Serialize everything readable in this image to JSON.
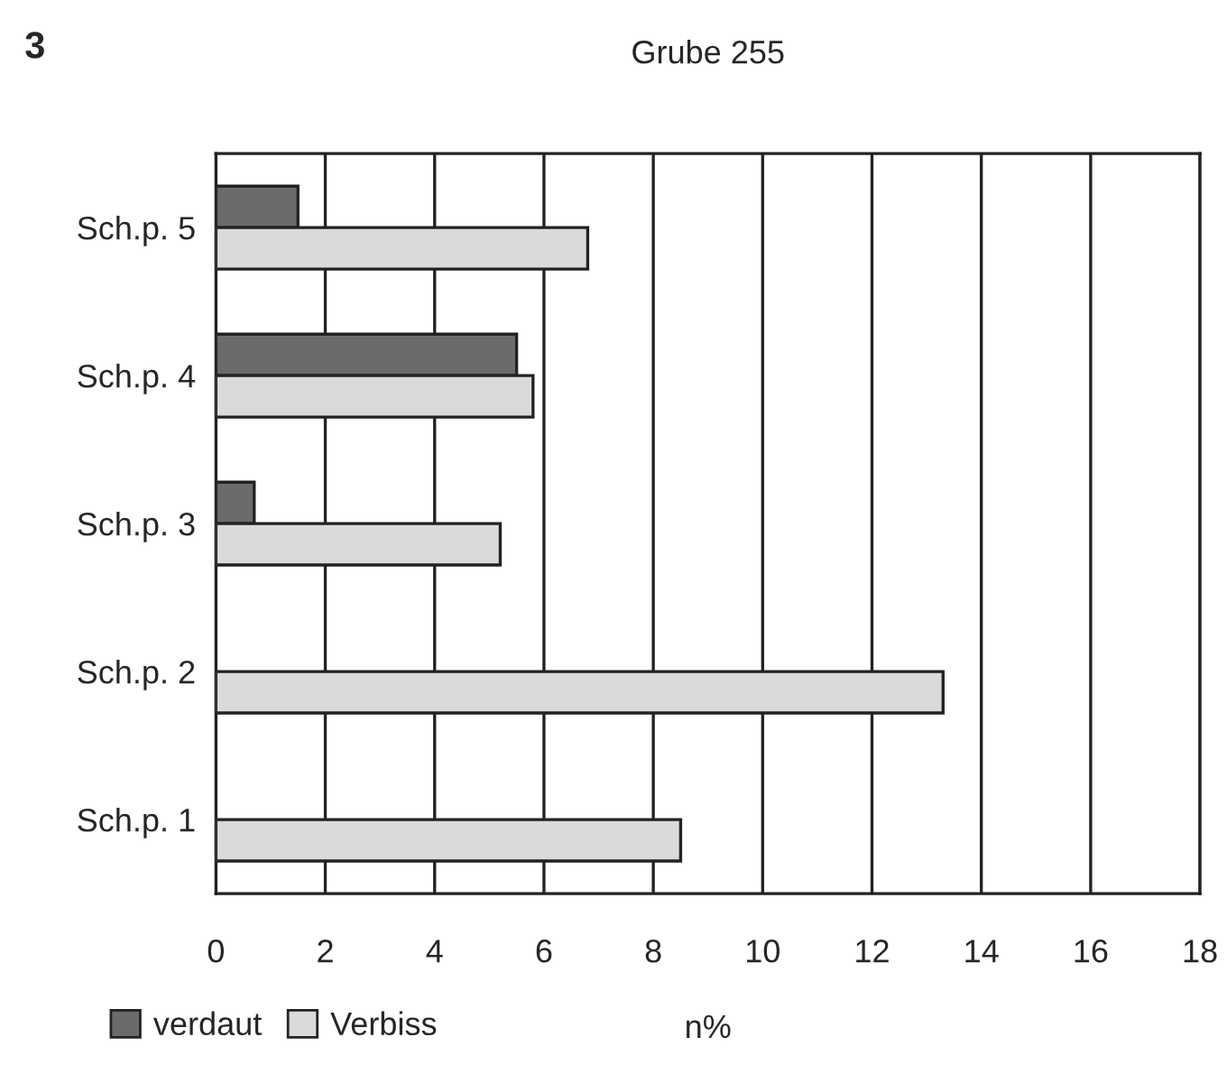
{
  "chart_data": {
    "type": "bar",
    "orientation": "horizontal",
    "title": "Grube 255",
    "xlabel": "n%",
    "annotations": [
      "3"
    ],
    "categories": [
      "Sch.p. 5",
      "Sch.p. 4",
      "Sch.p. 3",
      "Sch.p. 2",
      "Sch.p. 1"
    ],
    "series": [
      {
        "name": "verdaut",
        "color": "#6b6b6b",
        "values": [
          1.5,
          5.5,
          0.7,
          null,
          null
        ]
      },
      {
        "name": "Verbiss",
        "color": "#d8dbd8",
        "values": [
          6.8,
          5.8,
          5.2,
          13.3,
          8.5
        ]
      }
    ],
    "xlim": [
      0,
      18
    ],
    "xticks": [
      0,
      2,
      4,
      6,
      8,
      10,
      12,
      14,
      16,
      18
    ],
    "grid": "x",
    "legend": "bottom left"
  }
}
